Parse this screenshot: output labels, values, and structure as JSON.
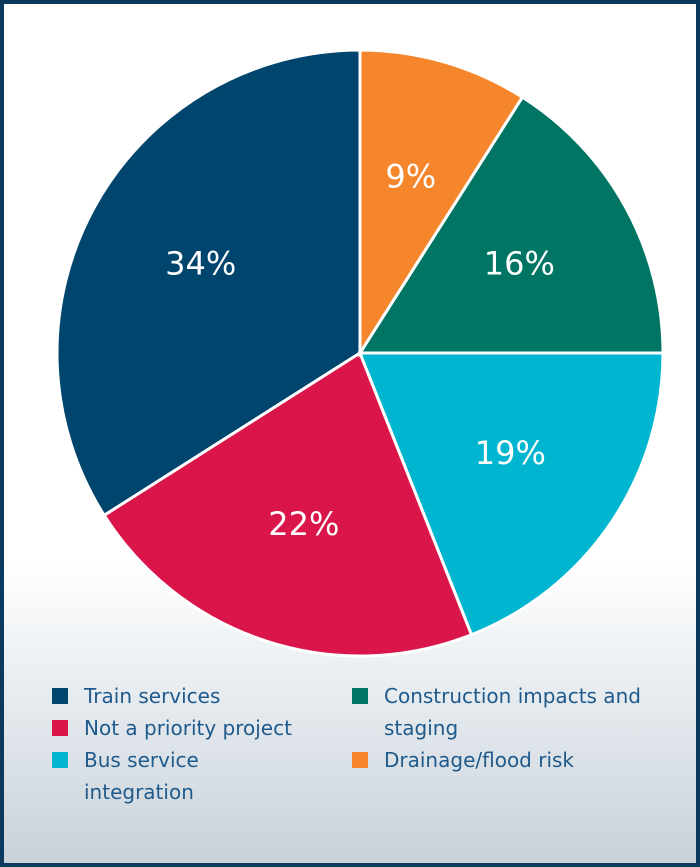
{
  "chart_data": {
    "type": "pie",
    "categories": [
      "Train services",
      "Not a priority project",
      "Bus service integration",
      "Construction impacts and staging",
      "Drainage/flood risk"
    ],
    "values": [
      34,
      22,
      19,
      16,
      9
    ],
    "value_labels": [
      "34%",
      "22%",
      "19%",
      "16%",
      "9%"
    ],
    "colors": [
      "#00456e",
      "#d9154a",
      "#00b5cf",
      "#007563",
      "#f5862c"
    ],
    "direction": "counterclockwise",
    "legend": "bottom"
  }
}
